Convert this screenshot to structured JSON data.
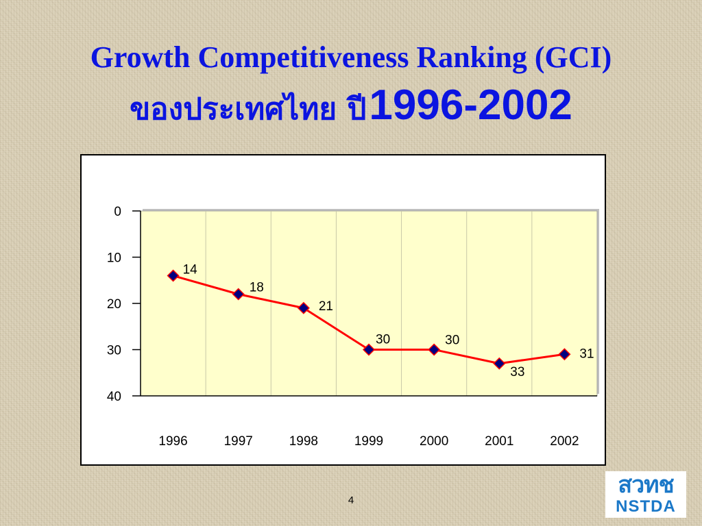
{
  "slide": {
    "title_line1": "Growth Competitiveness Ranking (GCI)",
    "title_line2_thai": "ของประเทศไทย ปี",
    "title_line2_years": "1996-2002",
    "page_number": "4"
  },
  "logo": {
    "top_text": "สวทช",
    "bottom_text": "NSTDA",
    "color": "#1b78c8"
  },
  "colors": {
    "title": "#0b14e0",
    "plot_background": "#ffffcc",
    "line": "#ff0000",
    "marker_fill": "#000080"
  },
  "chart_data": {
    "type": "line",
    "categories": [
      "1996",
      "1997",
      "1998",
      "1999",
      "2000",
      "2001",
      "2002"
    ],
    "series": [
      {
        "values": [
          14,
          18,
          21,
          30,
          30,
          33,
          31
        ]
      }
    ],
    "y_axis": {
      "reversed": true,
      "ylim": [
        0,
        40
      ],
      "ticks": [
        0,
        10,
        20,
        30,
        40
      ]
    },
    "grid": "vertical",
    "data_labels": true,
    "marker": "diamond"
  }
}
